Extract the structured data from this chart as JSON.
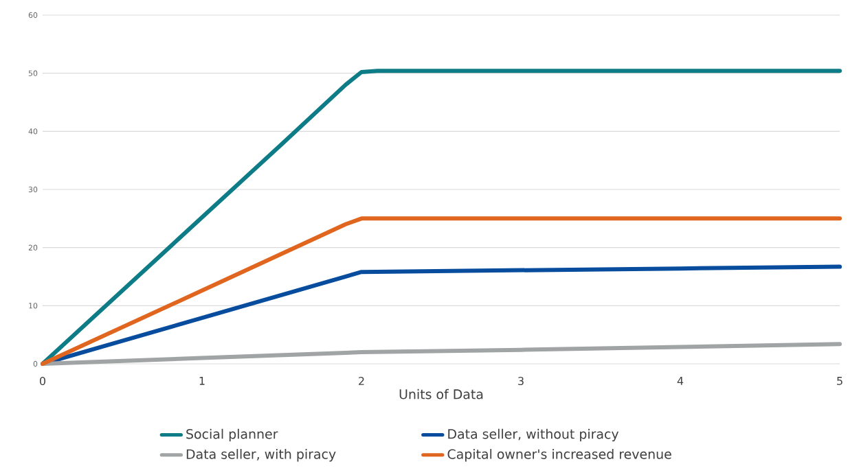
{
  "chart_data": {
    "type": "line",
    "xlabel": "Units of Data",
    "xlim": [
      0,
      5
    ],
    "xticks": [
      0,
      1,
      2,
      3,
      4,
      5
    ],
    "ylim": [
      0,
      60
    ],
    "yticks": [
      0,
      10,
      20,
      30,
      40,
      50,
      60
    ],
    "grid": "y",
    "legend": "bottom",
    "marker": "none",
    "line_style": "solid",
    "series": [
      {
        "name": "Social planner",
        "color": "#0e7c86",
        "x": [
          0,
          0.5,
          1,
          1.5,
          1.9,
          2,
          2.1,
          3,
          4,
          5
        ],
        "values": [
          0,
          12.6,
          25.2,
          37.8,
          48,
          50.2,
          50.4,
          50.4,
          50.4,
          50.4
        ]
      },
      {
        "name": "Data seller, without piracy",
        "color": "#084c9e",
        "x": [
          0,
          1,
          2,
          3,
          4,
          5
        ],
        "values": [
          0,
          7.9,
          15.8,
          16.1,
          16.4,
          16.7
        ]
      },
      {
        "name": "Data seller, with piracy",
        "color": "#a0a4a5",
        "x": [
          0,
          1,
          2,
          3,
          4,
          5
        ],
        "values": [
          0,
          1,
          2,
          2.4,
          2.9,
          3.4
        ]
      },
      {
        "name": "Capital owner's increased revenue",
        "color": "#e0651e",
        "x": [
          0,
          1,
          1.9,
          2,
          3,
          4,
          5
        ],
        "values": [
          0,
          12.6,
          24,
          25,
          25,
          25,
          25
        ]
      }
    ]
  }
}
